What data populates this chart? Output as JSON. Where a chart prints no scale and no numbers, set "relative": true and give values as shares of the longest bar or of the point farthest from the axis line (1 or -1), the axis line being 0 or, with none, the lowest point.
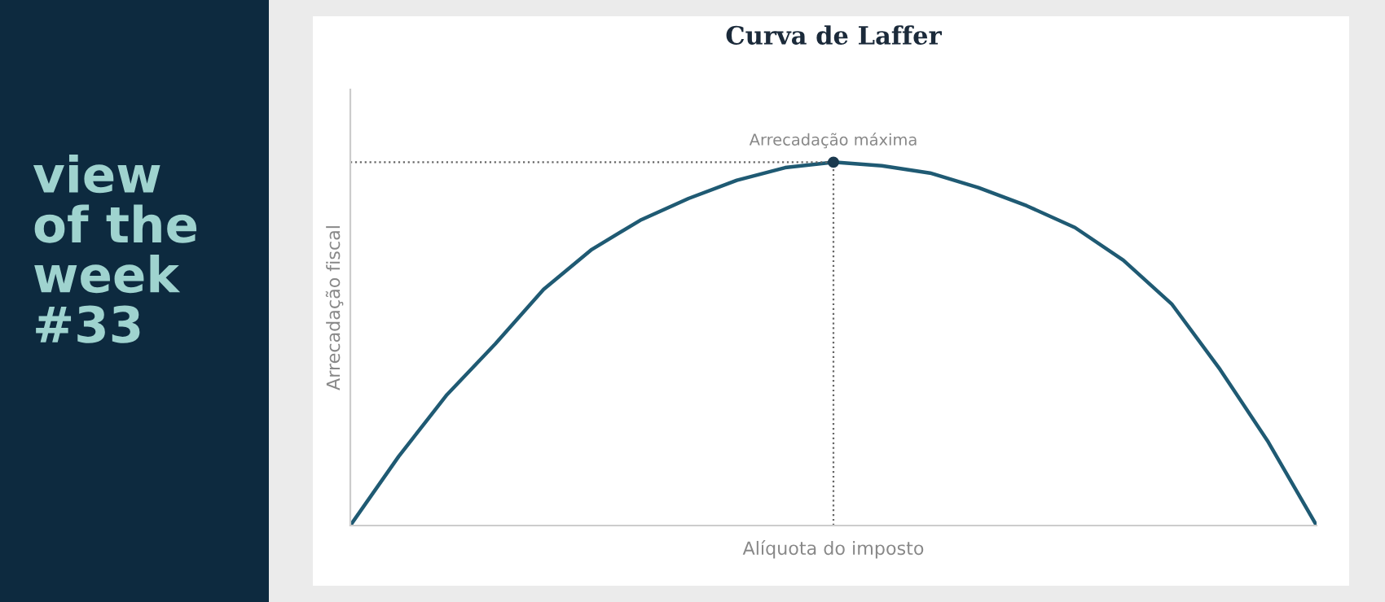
{
  "chart_data": {
    "type": "line",
    "title": "Curva de Laffer",
    "xlabel": "Alíquota do imposto",
    "ylabel": "Arrecadação fiscal",
    "relative": true,
    "grid": false,
    "legend": false,
    "marker": "none",
    "line_style": "solid",
    "categories": [
      null,
      null,
      null,
      null,
      null,
      null,
      null,
      null,
      null,
      null,
      null,
      null,
      null,
      null,
      null,
      null,
      null,
      null,
      null,
      null,
      null
    ],
    "series": [
      {
        "color": "#1f5a73",
        "values": [
          0,
          0.19,
          0.36,
          0.5,
          0.65,
          0.76,
          0.84,
          0.9,
          0.95,
          0.985,
          1,
          0.99,
          0.97,
          0.93,
          0.88,
          0.82,
          0.73,
          0.61,
          0.43,
          0.23,
          0
        ]
      }
    ],
    "annotations": [
      {
        "text": "Arrecadação máxima",
        "y": 1
      },
      "view\nof the\nweek\n#33"
    ]
  }
}
